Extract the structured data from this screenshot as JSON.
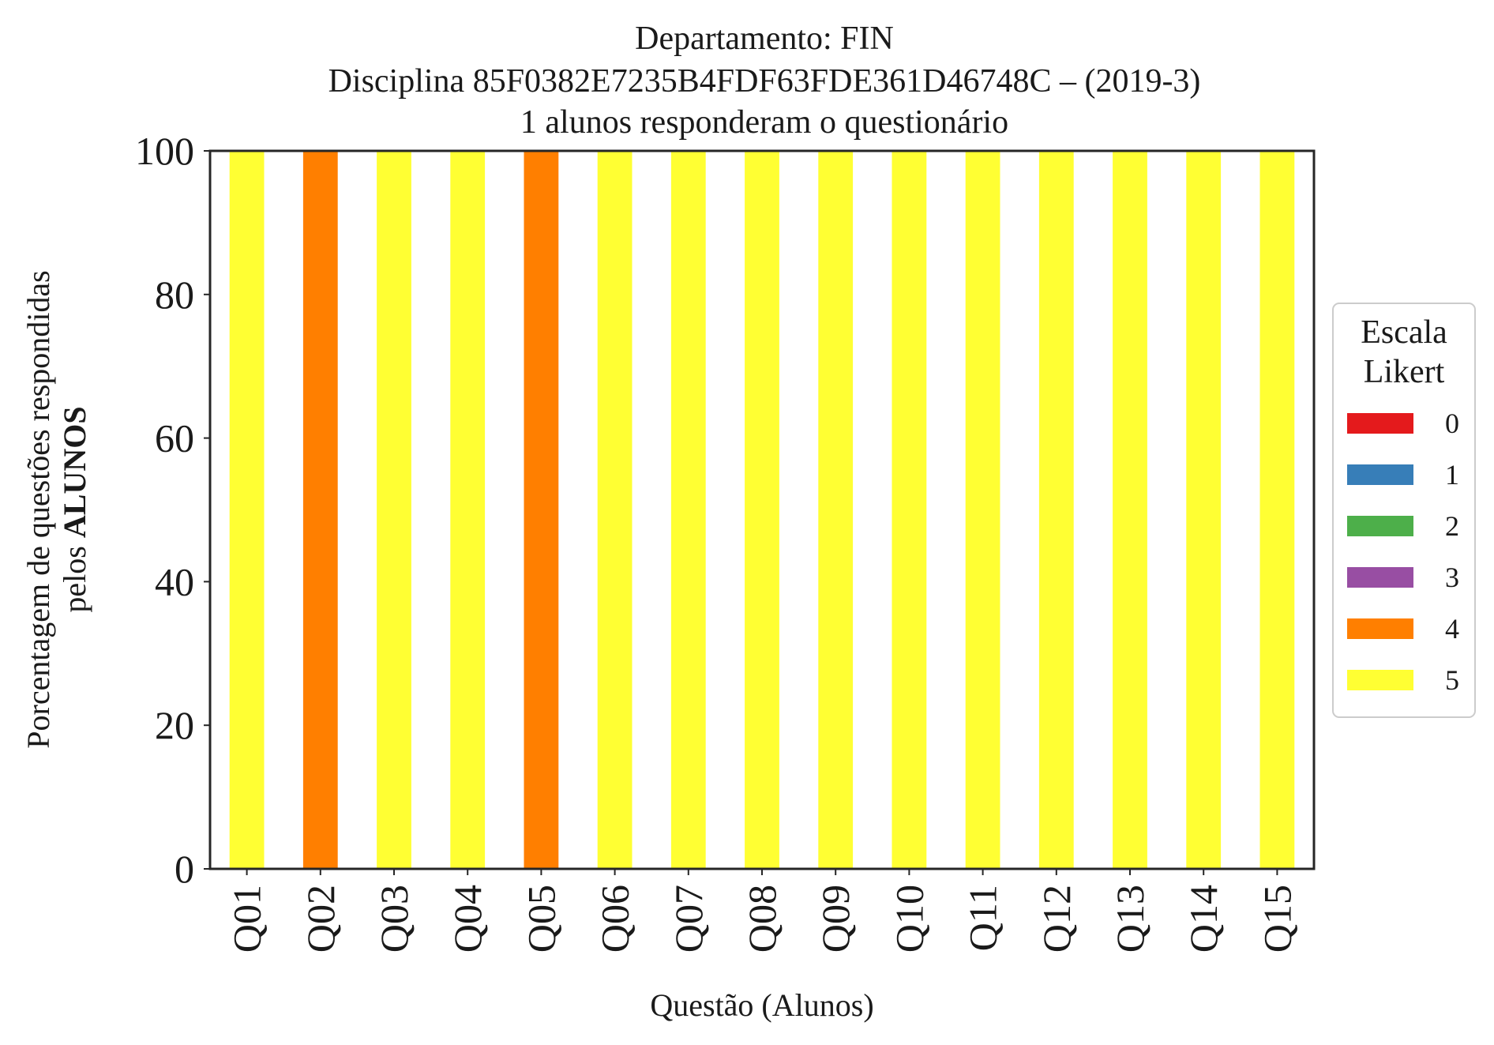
{
  "chart_data": {
    "type": "bar",
    "stacked": true,
    "title_lines": [
      "Departamento: FIN",
      "Disciplina 85F0382E7235B4FDF63FDE361D46748C – (2019-3)",
      "1 alunos responderam o questionário"
    ],
    "xlabel": "Questão (Alunos)",
    "ylabel_lines": [
      "Porcentagem de questões respondidas",
      "pelos"
    ],
    "ylabel_bold": "ALUNOS",
    "ylim": [
      0,
      100
    ],
    "yticks": [
      "0",
      "20",
      "40",
      "60",
      "80",
      "100"
    ],
    "categories": [
      "Q01",
      "Q02",
      "Q03",
      "Q04",
      "Q05",
      "Q06",
      "Q07",
      "Q08",
      "Q09",
      "Q10",
      "Q11",
      "Q12",
      "Q13",
      "Q14",
      "Q15"
    ],
    "series": [
      {
        "name": "0",
        "color": "#e41a1c",
        "values": [
          0,
          0,
          0,
          0,
          0,
          0,
          0,
          0,
          0,
          0,
          0,
          0,
          0,
          0,
          0
        ]
      },
      {
        "name": "1",
        "color": "#377eb8",
        "values": [
          0,
          0,
          0,
          0,
          0,
          0,
          0,
          0,
          0,
          0,
          0,
          0,
          0,
          0,
          0
        ]
      },
      {
        "name": "2",
        "color": "#4daf4a",
        "values": [
          0,
          0,
          0,
          0,
          0,
          0,
          0,
          0,
          0,
          0,
          0,
          0,
          0,
          0,
          0
        ]
      },
      {
        "name": "3",
        "color": "#984ea3",
        "values": [
          0,
          0,
          0,
          0,
          0,
          0,
          0,
          0,
          0,
          0,
          0,
          0,
          0,
          0,
          0
        ]
      },
      {
        "name": "4",
        "color": "#ff7f00",
        "values": [
          0,
          100,
          0,
          0,
          100,
          0,
          0,
          0,
          0,
          0,
          0,
          0,
          0,
          0,
          0
        ]
      },
      {
        "name": "5",
        "color": "#ffff33",
        "values": [
          100,
          0,
          100,
          100,
          0,
          100,
          100,
          100,
          100,
          100,
          100,
          100,
          100,
          100,
          100
        ]
      }
    ],
    "legend": {
      "title_lines": [
        "Escala",
        "Likert"
      ],
      "placement": "right"
    },
    "grid": false
  }
}
